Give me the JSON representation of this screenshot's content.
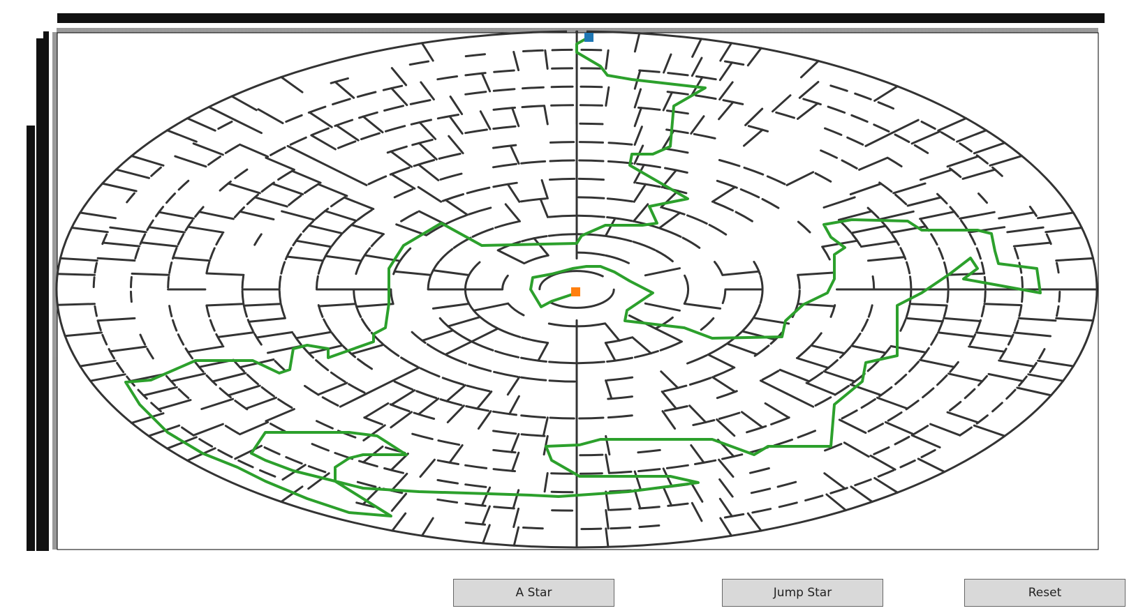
{
  "controls": {
    "astar_label": "A Star",
    "jump_label": "Jump Star",
    "reset_label": "Reset"
  },
  "colors": {
    "wall": "#333333",
    "path": "#2ca02c",
    "start": "#1f77b4",
    "goal": "#ff7f0e",
    "button_bg": "#d9d9d9"
  },
  "maze": {
    "shape": "circular",
    "rings": 14,
    "solution_shown": true
  }
}
